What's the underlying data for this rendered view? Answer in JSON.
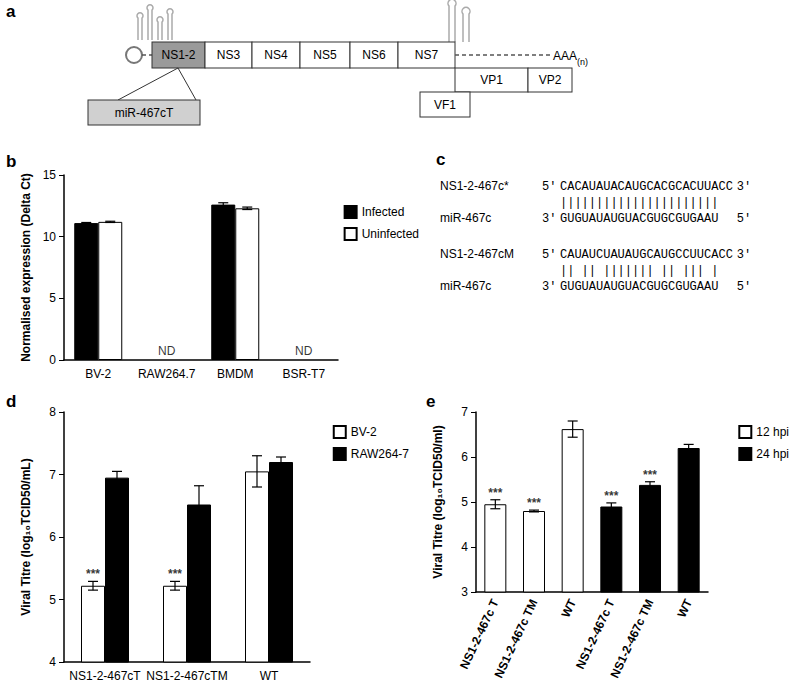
{
  "genome": {
    "panel_label": "a",
    "orf1": [
      "NS1-2",
      "NS3",
      "NS4",
      "NS5",
      "NS6",
      "NS7"
    ],
    "orf2": [
      "VP1",
      "VP2"
    ],
    "orf4": "VF1",
    "insert": "miR-467cT",
    "poly_a": "AAA",
    "poly_a_subscript": "(n)"
  },
  "alignment": {
    "panel_label": "c",
    "pairs": [
      {
        "target_name": "NS1-2-467c*",
        "target_5": "5'",
        "target_seq": "CACAUAUACAUGCACGCACUUACC",
        "target_3": "3'",
        "pairing": "||||||||||||||||||||||",
        "mirna_name": "miR-467c",
        "mirna_3": "3'",
        "mirna_seq": "GUGUAUAUGUACGUGCGUGAAU",
        "mirna_5": "5'"
      },
      {
        "target_name": "NS1-2-467cM",
        "target_5": "5'",
        "target_seq": "CAUAUCUAUAUGCAUGCCUUCACC",
        "target_3": "3'",
        "pairing": "|| || ||||||| || ||| |",
        "mirna_name": "miR-467c",
        "mirna_3": "3'",
        "mirna_seq": "GUGUAUAUGUACGUGCGUGAAU",
        "mirna_5": "5'"
      }
    ]
  },
  "chart_data": [
    {
      "panel_label": "b",
      "type": "bar",
      "categories": [
        "BV-2",
        "RAW264.7",
        "BMDM",
        "BSR-T7"
      ],
      "ylabel": "Normalised expression (Delta Ct)",
      "ylim": [
        0,
        15
      ],
      "yticks": [
        0,
        5,
        10,
        15
      ],
      "legend": "upper right",
      "series": [
        {
          "name": "Infected",
          "color": "#000000",
          "values": [
            11.1,
            null,
            12.6,
            null
          ],
          "errors": [
            0.05,
            null,
            0.15,
            null
          ]
        },
        {
          "name": "Uninfected",
          "color": "#ffffff",
          "values": [
            11.2,
            null,
            12.3,
            null
          ],
          "errors": [
            0.05,
            null,
            0.1,
            null
          ]
        }
      ],
      "annotations": [
        {
          "category": "RAW264.7",
          "text": "ND"
        },
        {
          "category": "BSR-T7",
          "text": "ND"
        }
      ]
    },
    {
      "panel_label": "d",
      "type": "bar",
      "categories": [
        "NS1-2-467cT",
        "NS1-2-467cTM",
        "WT"
      ],
      "ylabel": "Viral Titre (log₁₀TCID50/mL)",
      "ylim": [
        4,
        8
      ],
      "yticks": [
        4,
        5,
        6,
        7,
        8
      ],
      "legend": "upper right",
      "series": [
        {
          "name": "BV-2",
          "color": "#ffffff",
          "values": [
            5.22,
            5.22,
            7.05
          ],
          "errors": [
            0.07,
            0.07,
            0.25
          ],
          "significance": [
            "***",
            "***",
            null
          ]
        },
        {
          "name": "RAW264-7",
          "color": "#000000",
          "values": [
            6.95,
            6.52,
            7.2
          ],
          "errors": [
            0.1,
            0.3,
            0.08
          ],
          "significance": [
            null,
            null,
            null
          ]
        }
      ]
    },
    {
      "panel_label": "e",
      "type": "bar",
      "categories": [
        "NS1-2-467c T",
        "NS1-2-467c TM",
        "WT",
        "NS1-2-467c T",
        "NS1-2-467c TM",
        "WT"
      ],
      "ylabel": "Viral Titre (log₁₀TCID50/ml)",
      "ylim": [
        3,
        7
      ],
      "yticks": [
        3,
        4,
        5,
        6,
        7
      ],
      "legend": "upper right",
      "series": [
        {
          "name": "12 hpi",
          "color": "#ffffff",
          "values": [
            4.95,
            4.8,
            6.62,
            null,
            null,
            null
          ],
          "errors": [
            0.1,
            0.02,
            0.18,
            null,
            null,
            null
          ],
          "significance": [
            "***",
            "***",
            null,
            null,
            null,
            null
          ]
        },
        {
          "name": "24 hpi",
          "color": "#000000",
          "values": [
            null,
            null,
            null,
            4.9,
            5.38,
            6.2
          ],
          "errors": [
            null,
            null,
            null,
            0.08,
            0.07,
            0.08
          ],
          "significance": [
            null,
            null,
            null,
            "***",
            "***",
            null
          ]
        }
      ]
    }
  ]
}
